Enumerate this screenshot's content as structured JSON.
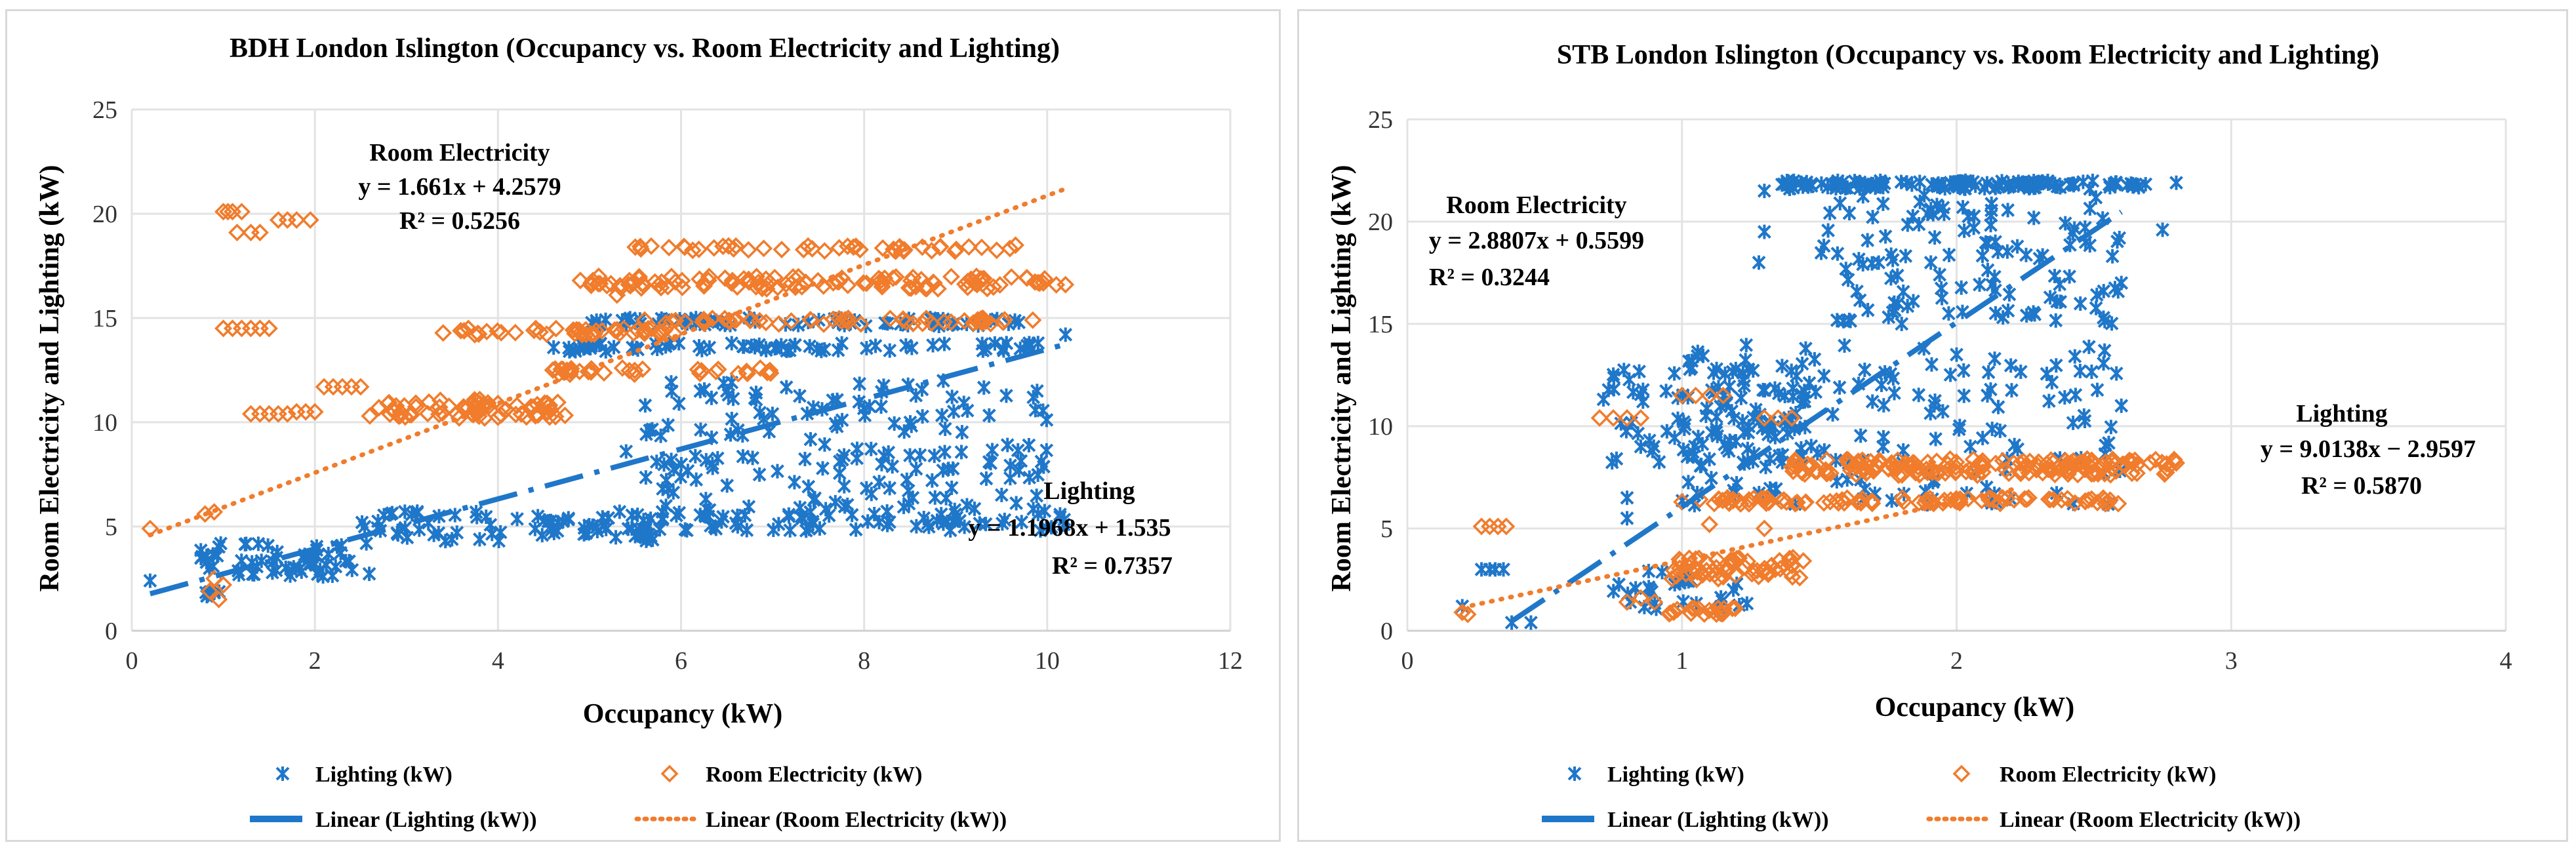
{
  "chart_data": [
    {
      "type": "scatter",
      "title": "BDH London Islington (Occupancy vs. Room Electricity and Lighting)",
      "xlabel": "Occupancy (kW)",
      "ylabel": "Room Electricity and Lighting (kW)",
      "xlim": [
        0,
        12
      ],
      "ylim": [
        0,
        25
      ],
      "xticks": [
        0,
        2,
        4,
        6,
        8,
        10,
        12
      ],
      "yticks": [
        0,
        5,
        10,
        15,
        20,
        25
      ],
      "colors": {
        "lighting": "#1f77c9",
        "room": "#f07c2c"
      },
      "series": [
        {
          "name": "Lighting (kW)",
          "clusters": [
            {
              "x": [
                0.7,
                2.6
              ],
              "y": [
                2.6,
                4.2
              ],
              "n": 60
            },
            {
              "x": [
                2.5,
                5.8
              ],
              "y": [
                4.3,
                5.8
              ],
              "n": 80
            },
            {
              "x": [
                4.6,
                9.9
              ],
              "y": [
                13.4,
                13.8
              ],
              "n": 70
            },
            {
              "x": [
                5.0,
                10.0
              ],
              "y": [
                14.6,
                15.0
              ],
              "n": 60
            },
            {
              "x": [
                5.6,
                10.0
              ],
              "y": [
                4.8,
                12.0
              ],
              "n": 190
            },
            {
              "x": [
                5.5,
                10.2
              ],
              "y": [
                4.8,
                5.6
              ],
              "n": 50
            },
            {
              "x": [
                0.8,
                1.0
              ],
              "y": [
                1.5,
                2.6
              ],
              "n": 6
            }
          ],
          "points": [
            [
              0.2,
              2.4
            ],
            [
              10.2,
              14.2
            ],
            [
              9.8,
              8.9
            ],
            [
              9.9,
              5.6
            ],
            [
              5.4,
              8.6
            ],
            [
              6.5,
              11.5
            ],
            [
              3.3,
              4.6
            ]
          ]
        },
        {
          "name": "Room Electricity (kW)",
          "clusters": [
            {
              "x": [
                3.4,
                6.0
              ],
              "y": [
                14.2,
                14.5
              ],
              "n": 45
            },
            {
              "x": [
                5.0,
                10.1
              ],
              "y": [
                16.4,
                17.0
              ],
              "n": 110
            },
            {
              "x": [
                5.5,
                9.9
              ],
              "y": [
                18.2,
                18.5
              ],
              "n": 45
            },
            {
              "x": [
                5.5,
                10.0
              ],
              "y": [
                14.7,
                15.0
              ],
              "n": 55
            },
            {
              "x": [
                4.6,
                7.2
              ],
              "y": [
                12.3,
                12.6
              ],
              "n": 30
            },
            {
              "x": [
                2.8,
                4.8
              ],
              "y": [
                10.2,
                11.1
              ],
              "n": 70
            }
          ],
          "points": [
            [
              0.2,
              4.9
            ],
            [
              0.8,
              5.6
            ],
            [
              0.9,
              5.7
            ],
            [
              0.85,
              1.9
            ],
            [
              0.9,
              2.5
            ],
            [
              1.0,
              2.2
            ],
            [
              0.95,
              1.5
            ],
            [
              1.0,
              20.1
            ],
            [
              1.05,
              20.1
            ],
            [
              1.1,
              20.1
            ],
            [
              1.2,
              20.1
            ],
            [
              1.15,
              19.1
            ],
            [
              1.3,
              19.1
            ],
            [
              1.4,
              19.1
            ],
            [
              1.6,
              19.7
            ],
            [
              1.7,
              19.7
            ],
            [
              1.8,
              19.7
            ],
            [
              1.95,
              19.7
            ],
            [
              1.0,
              14.5
            ],
            [
              1.1,
              14.5
            ],
            [
              1.2,
              14.5
            ],
            [
              1.3,
              14.5
            ],
            [
              1.4,
              14.5
            ],
            [
              1.5,
              14.5
            ],
            [
              1.3,
              10.4
            ],
            [
              1.4,
              10.4
            ],
            [
              1.5,
              10.4
            ],
            [
              1.6,
              10.4
            ],
            [
              1.7,
              10.4
            ],
            [
              1.8,
              10.5
            ],
            [
              1.9,
              10.5
            ],
            [
              2.0,
              10.5
            ],
            [
              2.1,
              11.7
            ],
            [
              2.2,
              11.7
            ],
            [
              2.3,
              11.7
            ],
            [
              2.4,
              11.7
            ],
            [
              2.5,
              11.7
            ],
            [
              2.6,
              10.3
            ],
            [
              2.7,
              10.7
            ],
            [
              2.8,
              10.9
            ],
            [
              4.6,
              12.5
            ],
            [
              4.9,
              16.8
            ],
            [
              5.1,
              17.0
            ],
            [
              5.3,
              16.1
            ],
            [
              5.5,
              18.4
            ],
            [
              10.2,
              16.6
            ],
            [
              9.9,
              16.7
            ]
          ]
        }
      ],
      "trendlines": [
        {
          "name": "Linear (Lighting (kW))",
          "slope": 1.1968,
          "intercept": 1.535,
          "x_range": [
            0.2,
            10.2
          ],
          "style": "dash-dot"
        },
        {
          "name": "Linear (Room Electricity (kW))",
          "slope": 1.661,
          "intercept": 4.2579,
          "x_range": [
            0.2,
            10.2
          ],
          "style": "dotted"
        }
      ],
      "annotations": {
        "room_label": "Room Electricity",
        "room_eq": "y = 1.661x + 4.2579",
        "room_r2": "R² = 0.5256",
        "light_label": "Lighting",
        "light_eq": "y = 1.1968x + 1.535",
        "light_r2": "R² = 0.7357"
      },
      "legend": [
        "Lighting (kW)",
        "Room Electricity (kW)",
        "Linear (Lighting (kW))",
        "Linear (Room Electricity (kW))"
      ]
    },
    {
      "type": "scatter",
      "title": "STB London Islington (Occupancy vs. Room Electricity and Lighting)",
      "xlabel": "Occupancy (kW)",
      "ylabel": "Room Electricity and Lighting (kW)",
      "xlim": [
        0,
        4
      ],
      "ylim": [
        0,
        25
      ],
      "xticks": [
        0,
        1,
        2,
        3,
        4
      ],
      "yticks": [
        0,
        5,
        10,
        15,
        20,
        25
      ],
      "colors": {
        "lighting": "#1f77c9",
        "room": "#f07c2c"
      },
      "series": [
        {
          "name": "Lighting (kW)",
          "clusters": [
            {
              "x": [
                1.35,
                2.7
              ],
              "y": [
                21.6,
                22.0
              ],
              "n": 120
            },
            {
              "x": [
                1.5,
                2.6
              ],
              "y": [
                15.0,
                21.5
              ],
              "n": 120
            },
            {
              "x": [
                1.0,
                2.6
              ],
              "y": [
                6.0,
                14.0
              ],
              "n": 170
            },
            {
              "x": [
                0.7,
                1.45
              ],
              "y": [
                8.0,
                12.8
              ],
              "n": 90
            },
            {
              "x": [
                0.75,
                1.25
              ],
              "y": [
                1.0,
                3.2
              ],
              "n": 30
            }
          ],
          "points": [
            [
              0.2,
              1.2
            ],
            [
              0.27,
              3.0
            ],
            [
              0.3,
              3.0
            ],
            [
              0.32,
              3.0
            ],
            [
              0.35,
              3.0
            ],
            [
              0.38,
              0.4
            ],
            [
              0.45,
              0.4
            ],
            [
              0.8,
              6.5
            ],
            [
              0.8,
              5.5
            ],
            [
              1.28,
              18.0
            ],
            [
              1.3,
              19.5
            ],
            [
              1.3,
              21.5
            ],
            [
              2.75,
              19.6
            ],
            [
              2.8,
              21.9
            ],
            [
              2.6,
              17.0
            ],
            [
              2.6,
              11.0
            ],
            [
              1.8,
              15.0
            ],
            [
              2.0,
              13.5
            ],
            [
              0.85,
              9.0
            ]
          ]
        },
        {
          "name": "Room Electricity (kW)",
          "clusters": [
            {
              "x": [
                1.4,
                2.8
              ],
              "y": [
                7.6,
                8.4
              ],
              "n": 170
            },
            {
              "x": [
                1.05,
                2.6
              ],
              "y": [
                6.2,
                6.5
              ],
              "n": 90
            },
            {
              "x": [
                0.95,
                1.45
              ],
              "y": [
                2.5,
                3.6
              ],
              "n": 60
            },
            {
              "x": [
                0.95,
                1.2
              ],
              "y": [
                0.8,
                1.1
              ],
              "n": 20
            }
          ],
          "points": [
            [
              0.2,
              0.9
            ],
            [
              0.22,
              0.8
            ],
            [
              0.27,
              5.1
            ],
            [
              0.3,
              5.1
            ],
            [
              0.33,
              5.1
            ],
            [
              0.36,
              5.1
            ],
            [
              0.7,
              10.4
            ],
            [
              0.75,
              10.4
            ],
            [
              0.8,
              10.4
            ],
            [
              0.85,
              10.4
            ],
            [
              1.0,
              11.5
            ],
            [
              1.05,
              11.5
            ],
            [
              1.1,
              11.5
            ],
            [
              1.15,
              11.5
            ],
            [
              1.3,
              10.4
            ],
            [
              1.35,
              10.4
            ],
            [
              1.4,
              10.4
            ],
            [
              0.8,
              1.4
            ],
            [
              0.85,
              1.6
            ],
            [
              0.9,
              1.4
            ],
            [
              1.0,
              6.3
            ],
            [
              1.1,
              5.2
            ],
            [
              1.3,
              5.0
            ],
            [
              1.4,
              8.0
            ],
            [
              2.8,
              8.2
            ]
          ]
        }
      ],
      "trendlines": [
        {
          "name": "Linear (Lighting (kW))",
          "slope": 9.0138,
          "intercept": -2.9597,
          "x_range": [
            0.38,
            2.6
          ],
          "style": "dash-dot"
        },
        {
          "name": "Linear (Room Electricity (kW))",
          "slope": 2.8807,
          "intercept": 0.5599,
          "x_range": [
            0.2,
            2.2
          ],
          "style": "dotted"
        }
      ],
      "annotations": {
        "room_label": "Room Electricity",
        "room_eq": "y = 2.8807x + 0.5599",
        "room_r2": "R² = 0.3244",
        "light_label": "Lighting",
        "light_eq": "y = 9.0138x − 2.9597",
        "light_r2": "R² = 0.5870"
      },
      "legend": [
        "Lighting (kW)",
        "Room Electricity (kW)",
        "Linear (Lighting (kW))",
        "Linear (Room Electricity (kW))"
      ]
    }
  ]
}
